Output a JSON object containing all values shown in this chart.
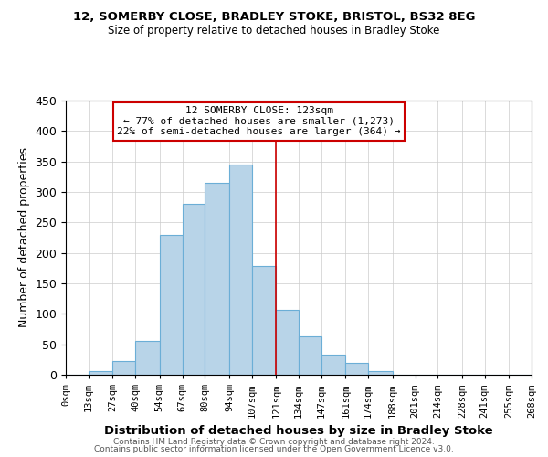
{
  "title1": "12, SOMERBY CLOSE, BRADLEY STOKE, BRISTOL, BS32 8EG",
  "title2": "Size of property relative to detached houses in Bradley Stoke",
  "xlabel": "Distribution of detached houses by size in Bradley Stoke",
  "ylabel": "Number of detached properties",
  "footer1": "Contains HM Land Registry data © Crown copyright and database right 2024.",
  "footer2": "Contains public sector information licensed under the Open Government Licence v3.0.",
  "bin_edges": [
    0,
    13,
    27,
    40,
    54,
    67,
    80,
    94,
    107,
    121,
    134,
    147,
    161,
    174,
    188,
    201,
    214,
    228,
    241,
    255,
    268
  ],
  "bin_labels": [
    "0sqm",
    "13sqm",
    "27sqm",
    "40sqm",
    "54sqm",
    "67sqm",
    "80sqm",
    "94sqm",
    "107sqm",
    "121sqm",
    "134sqm",
    "147sqm",
    "161sqm",
    "174sqm",
    "188sqm",
    "201sqm",
    "214sqm",
    "228sqm",
    "241sqm",
    "255sqm",
    "268sqm"
  ],
  "counts": [
    0,
    6,
    22,
    55,
    230,
    280,
    315,
    345,
    178,
    107,
    63,
    33,
    19,
    6,
    0,
    0,
    0,
    0,
    0,
    0
  ],
  "bar_color": "#b8d4e8",
  "bar_edge_color": "#6baed6",
  "grid_color": "#cccccc",
  "vline_x": 121,
  "vline_color": "#cc0000",
  "annotation_title": "12 SOMERBY CLOSE: 123sqm",
  "annotation_line1": "← 77% of detached houses are smaller (1,273)",
  "annotation_line2": "22% of semi-detached houses are larger (364) →",
  "annotation_box_edge": "#cc0000",
  "ylim": [
    0,
    450
  ],
  "xlim": [
    0,
    268
  ],
  "yticks": [
    0,
    50,
    100,
    150,
    200,
    250,
    300,
    350,
    400,
    450
  ]
}
